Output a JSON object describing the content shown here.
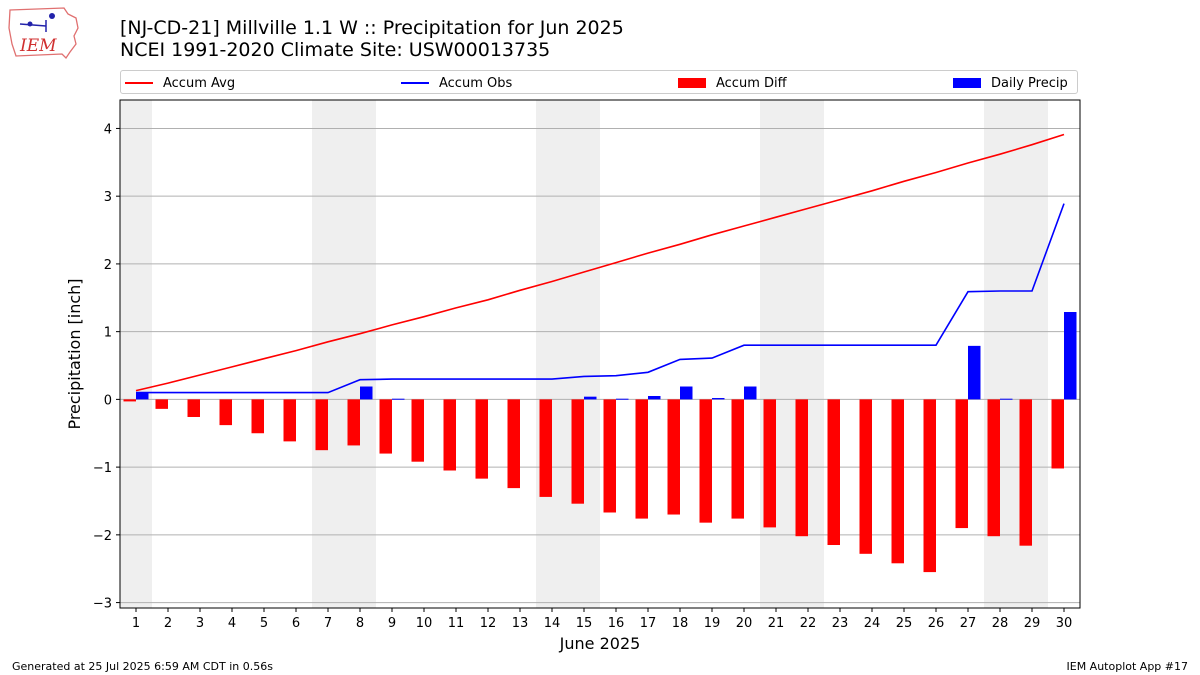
{
  "header": {
    "title_line1": "[NJ-CD-21] Millville 1.1 W :: Precipitation for Jun 2025",
    "title_line2": "NCEI 1991-2020 Climate Site: USW00013735"
  },
  "logo": {
    "text": "IEM",
    "icon": "iowa-state-outline-logo"
  },
  "footer": {
    "generated": "Generated at 25 Jul 2025 6:59 AM CDT in 0.56s",
    "app": "IEM Autoplot App #17"
  },
  "colors": {
    "avg": "#ff0000",
    "obs": "#0000ff",
    "diff": "#ff0000",
    "daily": "#0000ff",
    "weekend": "#efefef",
    "grid": "#b0b0b0"
  },
  "chart_data": {
    "type": "bar",
    "xlabel": "June 2025",
    "ylabel": "Precipitation [inch]",
    "ylim": [
      -3.08,
      4.42
    ],
    "xlim": [
      0.5,
      30.5
    ],
    "yticks": [
      -3,
      -2,
      -1,
      0,
      1,
      2,
      3,
      4
    ],
    "ytick_labels": [
      "−3",
      "−2",
      "−1",
      "0",
      "1",
      "2",
      "3",
      "4"
    ],
    "grid": "horizontal",
    "legend_position": "top",
    "weekend_shading": [
      [
        0.5,
        1.5
      ],
      [
        6.5,
        8.5
      ],
      [
        13.5,
        15.5
      ],
      [
        20.5,
        22.5
      ],
      [
        27.5,
        29.5
      ]
    ],
    "categories": [
      1,
      2,
      3,
      4,
      5,
      6,
      7,
      8,
      9,
      10,
      11,
      12,
      13,
      14,
      15,
      16,
      17,
      18,
      19,
      20,
      21,
      22,
      23,
      24,
      25,
      26,
      27,
      28,
      29,
      30
    ],
    "series": [
      {
        "name": "Accum Avg",
        "kind": "line",
        "values": [
          0.13,
          0.24,
          0.36,
          0.48,
          0.6,
          0.72,
          0.85,
          0.97,
          1.1,
          1.22,
          1.35,
          1.47,
          1.61,
          1.74,
          1.88,
          2.02,
          2.16,
          2.29,
          2.43,
          2.56,
          2.69,
          2.82,
          2.95,
          3.08,
          3.22,
          3.35,
          3.49,
          3.62,
          3.76,
          3.91
        ]
      },
      {
        "name": "Accum Obs",
        "kind": "line",
        "values": [
          0.1,
          0.1,
          0.1,
          0.1,
          0.1,
          0.1,
          0.1,
          0.29,
          0.3,
          0.3,
          0.3,
          0.3,
          0.3,
          0.3,
          0.34,
          0.35,
          0.4,
          0.59,
          0.61,
          0.8,
          0.8,
          0.8,
          0.8,
          0.8,
          0.8,
          0.8,
          1.59,
          1.6,
          1.6,
          2.89
        ]
      },
      {
        "name": "Accum Diff",
        "kind": "bar",
        "values": [
          -0.03,
          -0.14,
          -0.26,
          -0.38,
          -0.5,
          -0.62,
          -0.75,
          -0.68,
          -0.8,
          -0.92,
          -1.05,
          -1.17,
          -1.31,
          -1.44,
          -1.54,
          -1.67,
          -1.76,
          -1.7,
          -1.82,
          -1.76,
          -1.89,
          -2.02,
          -2.15,
          -2.28,
          -2.42,
          -2.55,
          -1.9,
          -2.02,
          -2.16,
          -1.02
        ]
      },
      {
        "name": "Daily Precip",
        "kind": "bar",
        "values": [
          0.1,
          0,
          0,
          0,
          0,
          0,
          0,
          0.19,
          0.01,
          0,
          0,
          0,
          0,
          0,
          0.04,
          0.01,
          0.05,
          0.19,
          0.02,
          0.19,
          0,
          0,
          0,
          0,
          0,
          0,
          0.79,
          0.01,
          0,
          1.29
        ]
      }
    ]
  }
}
